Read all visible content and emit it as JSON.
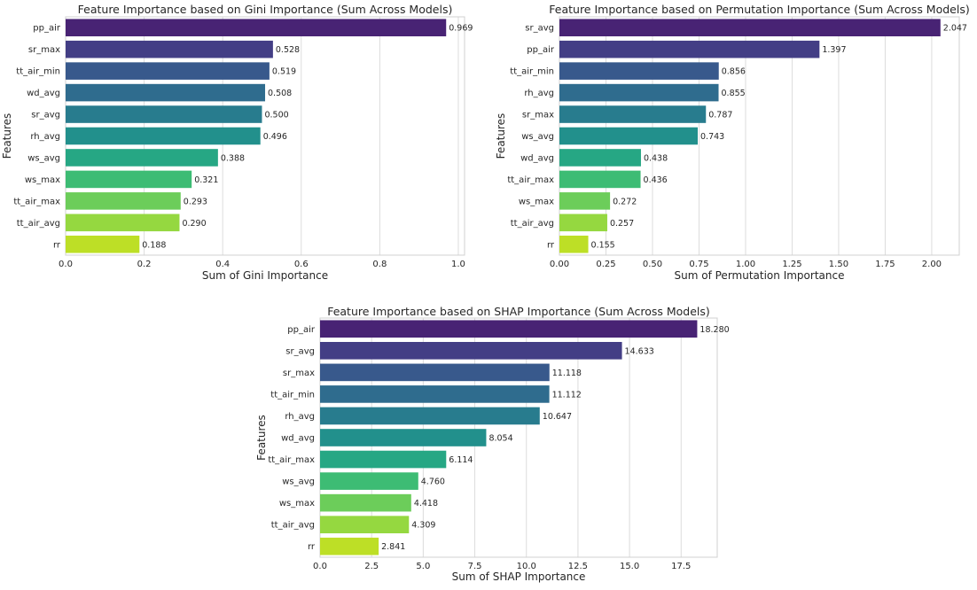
{
  "palette": [
    "#482374",
    "#433e85",
    "#38598c",
    "#2f6c8e",
    "#287c8e",
    "#22908c",
    "#26a784",
    "#3dbc74",
    "#6ccd5a",
    "#95d840",
    "#bddf26"
  ],
  "chart_data": [
    {
      "type": "bar",
      "orientation": "horizontal",
      "title": "Feature Importance based on Gini Importance (Sum Across Models)",
      "xlabel": "Sum of Gini Importance",
      "ylabel": "Features",
      "categories": [
        "pp_air",
        "sr_max",
        "tt_air_min",
        "wd_avg",
        "sr_avg",
        "rh_avg",
        "ws_avg",
        "ws_max",
        "tt_air_max",
        "tt_air_avg",
        "rr"
      ],
      "values": [
        0.969,
        0.528,
        0.519,
        0.508,
        0.5,
        0.496,
        0.388,
        0.321,
        0.293,
        0.29,
        0.188
      ],
      "value_labels": [
        "0.969",
        "0.528",
        "0.519",
        "0.508",
        "0.500",
        "0.496",
        "0.388",
        "0.321",
        "0.293",
        "0.290",
        "0.188"
      ],
      "xlim": [
        0,
        1.0159
      ],
      "xticks": [
        0,
        0.2,
        0.4,
        0.6,
        0.8,
        1.0
      ],
      "xtick_labels": [
        "0.0",
        "0.2",
        "0.4",
        "0.6",
        "0.8",
        "1.0"
      ],
      "grid": true
    },
    {
      "type": "bar",
      "orientation": "horizontal",
      "title": "Feature Importance based on Permutation Importance (Sum Across Models)",
      "xlabel": "Sum of Permutation Importance",
      "ylabel": "Features",
      "categories": [
        "sr_avg",
        "pp_air",
        "tt_air_min",
        "rh_avg",
        "sr_max",
        "ws_avg",
        "wd_avg",
        "tt_air_max",
        "ws_max",
        "tt_air_avg",
        "rr"
      ],
      "values": [
        2.047,
        1.397,
        0.856,
        0.855,
        0.787,
        0.743,
        0.438,
        0.436,
        0.272,
        0.257,
        0.155
      ],
      "value_labels": [
        "2.047",
        "1.397",
        "0.856",
        "0.855",
        "0.787",
        "0.743",
        "0.438",
        "0.436",
        "0.272",
        "0.257",
        "0.155"
      ],
      "xlim": [
        0,
        2.148
      ],
      "xticks": [
        0,
        0.25,
        0.5,
        0.75,
        1.0,
        1.25,
        1.5,
        1.75,
        2.0
      ],
      "xtick_labels": [
        "0.00",
        "0.25",
        "0.50",
        "0.75",
        "1.00",
        "1.25",
        "1.50",
        "1.75",
        "2.00"
      ],
      "grid": true
    },
    {
      "type": "bar",
      "orientation": "horizontal",
      "title": "Feature Importance based on SHAP Importance (Sum Across Models)",
      "xlabel": "Sum of SHAP Importance",
      "ylabel": "Features",
      "categories": [
        "pp_air",
        "sr_avg",
        "sr_max",
        "tt_air_min",
        "rh_avg",
        "wd_avg",
        "tt_air_max",
        "ws_avg",
        "ws_max",
        "tt_air_avg",
        "rr"
      ],
      "values": [
        18.28,
        14.633,
        11.118,
        11.112,
        10.647,
        8.054,
        6.114,
        4.76,
        4.418,
        4.309,
        2.841
      ],
      "value_labels": [
        "18.280",
        "14.633",
        "11.118",
        "11.112",
        "10.647",
        "8.054",
        "6.114",
        "4.760",
        "4.418",
        "4.309",
        "2.841"
      ],
      "xlim": [
        0,
        19.25
      ],
      "xticks": [
        0,
        2.5,
        5.0,
        7.5,
        10.0,
        12.5,
        15.0,
        17.5
      ],
      "xtick_labels": [
        "0.0",
        "2.5",
        "5.0",
        "7.5",
        "10.0",
        "12.5",
        "15.0",
        "17.5"
      ],
      "grid": true
    }
  ]
}
